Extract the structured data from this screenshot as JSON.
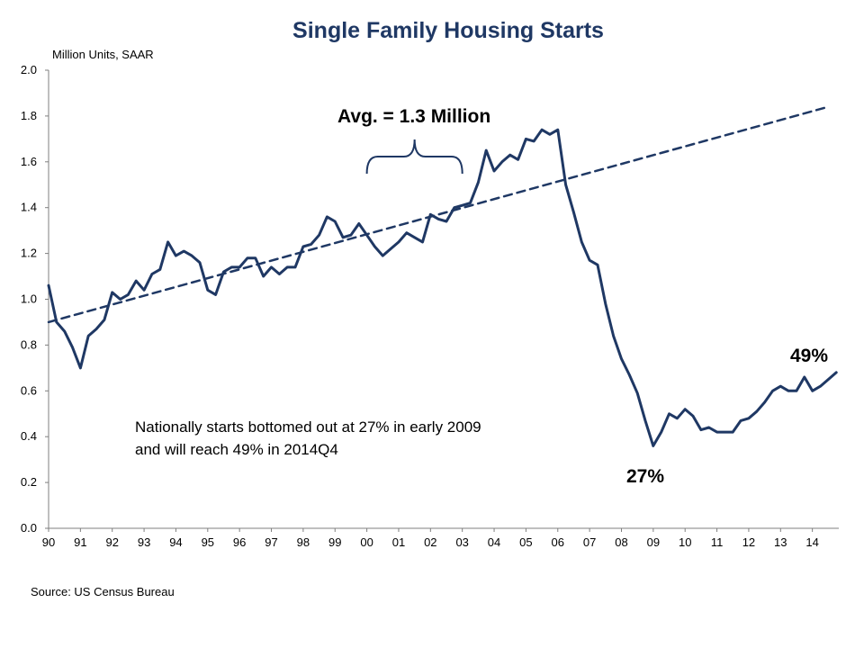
{
  "chart_data": {
    "type": "line",
    "title": "Single Family Housing Starts",
    "ylabel": "Million Units, SAAR",
    "source": "Source: US Census Bureau",
    "ylim": [
      0.0,
      2.0
    ],
    "y_ticks": [
      "0.0",
      "0.2",
      "0.4",
      "0.6",
      "0.8",
      "1.0",
      "1.2",
      "1.4",
      "1.6",
      "1.8",
      "2.0"
    ],
    "x_ticks": [
      "90",
      "91",
      "92",
      "93",
      "94",
      "95",
      "96",
      "97",
      "98",
      "99",
      "00",
      "01",
      "02",
      "03",
      "04",
      "05",
      "06",
      "07",
      "08",
      "09",
      "10",
      "11",
      "12",
      "13",
      "14"
    ],
    "grid": false,
    "series": [
      {
        "color": "#1f3864",
        "x": [
          1990.0,
          1990.25,
          1990.5,
          1990.75,
          1991.0,
          1991.25,
          1991.5,
          1991.75,
          1992.0,
          1992.25,
          1992.5,
          1992.75,
          1993.0,
          1993.25,
          1993.5,
          1993.75,
          1994.0,
          1994.25,
          1994.5,
          1994.75,
          1995.0,
          1995.25,
          1995.5,
          1995.75,
          1996.0,
          1996.25,
          1996.5,
          1996.75,
          1997.0,
          1997.25,
          1997.5,
          1997.75,
          1998.0,
          1998.25,
          1998.5,
          1998.75,
          1999.0,
          1999.25,
          1999.5,
          1999.75,
          2000.0,
          2000.25,
          2000.5,
          2000.75,
          2001.0,
          2001.25,
          2001.5,
          2001.75,
          2002.0,
          2002.25,
          2002.5,
          2002.75,
          2003.0,
          2003.25,
          2003.5,
          2003.75,
          2004.0,
          2004.25,
          2004.5,
          2004.75,
          2005.0,
          2005.25,
          2005.5,
          2005.75,
          2006.0,
          2006.25,
          2006.5,
          2006.75,
          2007.0,
          2007.25,
          2007.5,
          2007.75,
          2008.0,
          2008.25,
          2008.5,
          2008.75,
          2009.0,
          2009.25,
          2009.5,
          2009.75,
          2010.0,
          2010.25,
          2010.5,
          2010.75,
          2011.0,
          2011.25,
          2011.5,
          2011.75,
          2012.0,
          2012.25,
          2012.5,
          2012.75,
          2013.0,
          2013.25,
          2013.5,
          2013.75,
          2014.0,
          2014.25,
          2014.5,
          2014.75
        ],
        "values": [
          1.06,
          0.9,
          0.86,
          0.79,
          0.7,
          0.84,
          0.87,
          0.91,
          1.03,
          1.0,
          1.02,
          1.08,
          1.04,
          1.11,
          1.13,
          1.25,
          1.19,
          1.21,
          1.19,
          1.16,
          1.04,
          1.02,
          1.12,
          1.14,
          1.14,
          1.18,
          1.18,
          1.1,
          1.14,
          1.11,
          1.14,
          1.14,
          1.23,
          1.24,
          1.28,
          1.36,
          1.34,
          1.27,
          1.28,
          1.33,
          1.28,
          1.23,
          1.19,
          1.22,
          1.25,
          1.29,
          1.27,
          1.25,
          1.37,
          1.35,
          1.34,
          1.4,
          1.41,
          1.42,
          1.51,
          1.65,
          1.56,
          1.6,
          1.63,
          1.61,
          1.7,
          1.69,
          1.74,
          1.72,
          1.74,
          1.5,
          1.38,
          1.25,
          1.17,
          1.15,
          0.98,
          0.84,
          0.74,
          0.67,
          0.59,
          0.47,
          0.36,
          0.42,
          0.5,
          0.48,
          0.52,
          0.49,
          0.43,
          0.44,
          0.42,
          0.42,
          0.42,
          0.47,
          0.48,
          0.51,
          0.55,
          0.6,
          0.62,
          0.6,
          0.6,
          0.66,
          0.6,
          0.62,
          0.65,
          0.68
        ]
      },
      {
        "color": "#1f3864",
        "style": "dashed",
        "x": [
          1990.0,
          2014.5
        ],
        "values": [
          0.9,
          1.84
        ]
      }
    ],
    "annotations": {
      "avg": "Avg. = 1.3 Million",
      "note_line1": "Nationally starts bottomed out at 27% in early 2009",
      "note_line2": "and will reach 49% in 2014Q4",
      "low_pct": "27%",
      "high_pct": "49%"
    }
  }
}
